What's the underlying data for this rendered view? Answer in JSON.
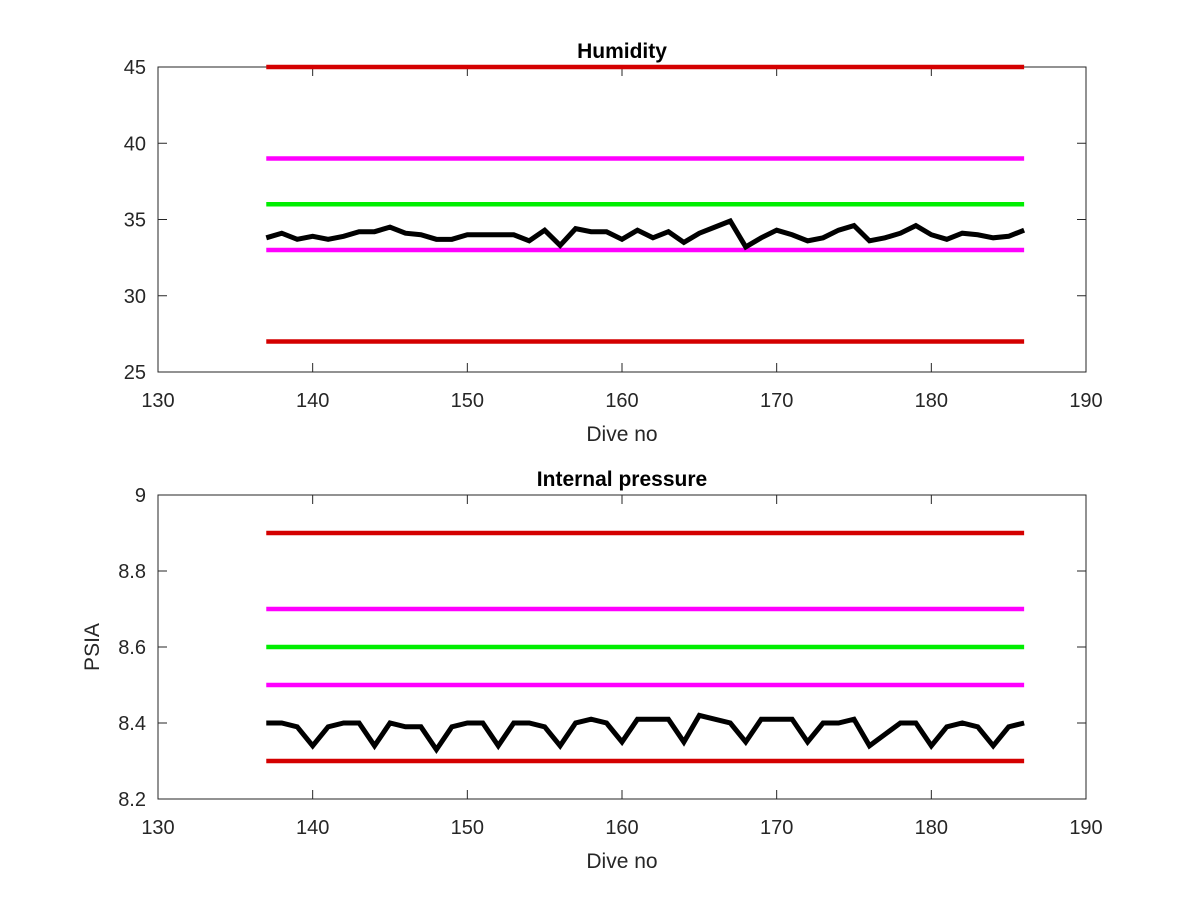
{
  "chart_data": [
    {
      "type": "line",
      "title": "Humidity",
      "xlabel": "Dive no",
      "ylabel": "",
      "xlim": [
        130,
        190
      ],
      "ylim": [
        25,
        45
      ],
      "xticks": [
        130,
        140,
        150,
        160,
        170,
        180,
        190
      ],
      "yticks": [
        25,
        30,
        35,
        40,
        45
      ],
      "grid": false,
      "series": [
        {
          "color": "#d40000",
          "x": [
            137,
            186
          ],
          "values": [
            45,
            45
          ]
        },
        {
          "color": "#ff00ff",
          "x": [
            137,
            186
          ],
          "values": [
            39,
            39
          ]
        },
        {
          "color": "#00ee00",
          "x": [
            137,
            186
          ],
          "values": [
            36,
            36
          ]
        },
        {
          "color": "#ff00ff",
          "x": [
            137,
            186
          ],
          "values": [
            33,
            33
          ]
        },
        {
          "color": "#d40000",
          "x": [
            137,
            186
          ],
          "values": [
            27,
            27
          ]
        },
        {
          "color": "#000000",
          "x": [
            137,
            138,
            139,
            140,
            141,
            142,
            143,
            144,
            145,
            146,
            147,
            148,
            149,
            150,
            151,
            152,
            153,
            154,
            155,
            156,
            157,
            158,
            159,
            160,
            161,
            162,
            163,
            164,
            165,
            166,
            167,
            168,
            169,
            170,
            171,
            172,
            173,
            174,
            175,
            176,
            177,
            178,
            179,
            180,
            181,
            182,
            183,
            184,
            185,
            186
          ],
          "values": [
            33.8,
            34.1,
            33.7,
            33.9,
            33.7,
            33.9,
            34.2,
            34.2,
            34.5,
            34.1,
            34.0,
            33.7,
            33.7,
            34.0,
            34.0,
            34.0,
            34.0,
            33.6,
            34.3,
            33.3,
            34.4,
            34.2,
            34.2,
            33.7,
            34.3,
            33.8,
            34.2,
            33.5,
            34.1,
            34.5,
            34.9,
            33.2,
            33.8,
            34.3,
            34.0,
            33.6,
            33.8,
            34.3,
            34.6,
            33.6,
            33.8,
            34.1,
            34.6,
            34.0,
            33.7,
            34.1,
            34.0,
            33.8,
            33.9,
            34.3
          ]
        }
      ]
    },
    {
      "type": "line",
      "title": "Internal pressure",
      "xlabel": "Dive no",
      "ylabel": "PSIA",
      "xlim": [
        130,
        190
      ],
      "ylim": [
        8.2,
        9
      ],
      "xticks": [
        130,
        140,
        150,
        160,
        170,
        180,
        190
      ],
      "yticks": [
        8.2,
        8.4,
        8.6,
        8.8,
        9
      ],
      "grid": false,
      "series": [
        {
          "color": "#d40000",
          "x": [
            137,
            186
          ],
          "values": [
            8.9,
            8.9
          ]
        },
        {
          "color": "#ff00ff",
          "x": [
            137,
            186
          ],
          "values": [
            8.7,
            8.7
          ]
        },
        {
          "color": "#00ee00",
          "x": [
            137,
            186
          ],
          "values": [
            8.6,
            8.6
          ]
        },
        {
          "color": "#ff00ff",
          "x": [
            137,
            186
          ],
          "values": [
            8.5,
            8.5
          ]
        },
        {
          "color": "#d40000",
          "x": [
            137,
            186
          ],
          "values": [
            8.3,
            8.3
          ]
        },
        {
          "color": "#000000",
          "x": [
            137,
            138,
            139,
            140,
            141,
            142,
            143,
            144,
            145,
            146,
            147,
            148,
            149,
            150,
            151,
            152,
            153,
            154,
            155,
            156,
            157,
            158,
            159,
            160,
            161,
            162,
            163,
            164,
            165,
            166,
            167,
            168,
            169,
            170,
            171,
            172,
            173,
            174,
            175,
            176,
            177,
            178,
            179,
            180,
            181,
            182,
            183,
            184,
            185,
            186
          ],
          "values": [
            8.4,
            8.4,
            8.39,
            8.34,
            8.39,
            8.4,
            8.4,
            8.34,
            8.4,
            8.39,
            8.39,
            8.33,
            8.39,
            8.4,
            8.4,
            8.34,
            8.4,
            8.4,
            8.39,
            8.34,
            8.4,
            8.41,
            8.4,
            8.35,
            8.41,
            8.41,
            8.41,
            8.35,
            8.42,
            8.41,
            8.4,
            8.35,
            8.41,
            8.41,
            8.41,
            8.35,
            8.4,
            8.4,
            8.41,
            8.34,
            8.37,
            8.4,
            8.4,
            8.34,
            8.39,
            8.4,
            8.39,
            8.34,
            8.39,
            8.4
          ]
        }
      ]
    }
  ]
}
